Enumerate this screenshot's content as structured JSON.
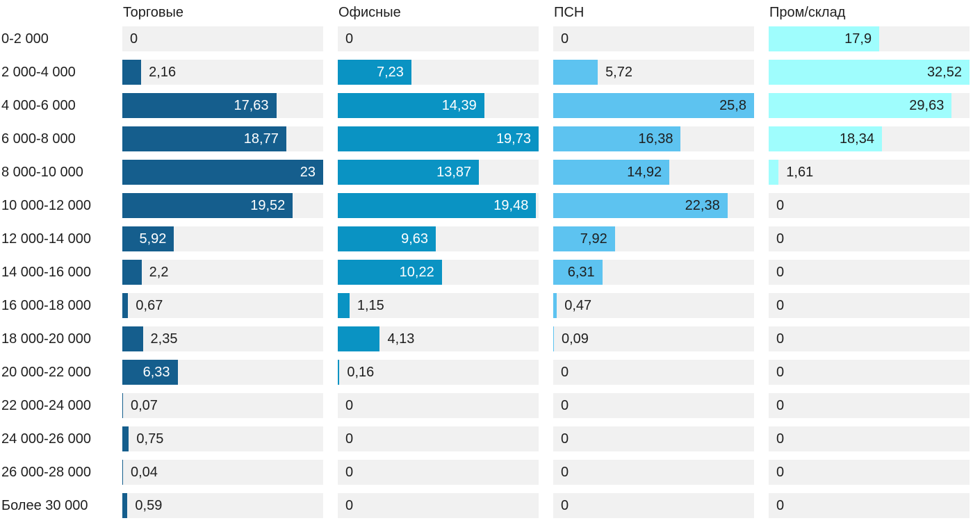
{
  "chart_data": {
    "type": "bar",
    "orientation": "horizontal",
    "title": "",
    "xlabel": "",
    "ylabel": "",
    "grid": false,
    "legend_position": "top-column-headers",
    "scale_note": "each column is scaled independently so the column maximum fills the full track width",
    "track_color": "#F1F1F1",
    "text_color": "#1E1E1E",
    "categories": [
      "0-2 000",
      "2 000-4 000",
      "4 000-6 000",
      "6 000-8 000",
      "8 000-10 000",
      "10 000-12 000",
      "12 000-14 000",
      "14 000-16 000",
      "16 000-18 000",
      "18 000-20 000",
      "20 000-22 000",
      "22 000-24 000",
      "24 000-26 000",
      "26 000-28 000",
      "Более 30 000"
    ],
    "series": [
      {
        "name": "Торговые",
        "color": "#155E8D",
        "label_color_inside": "#FFFFFF",
        "values": [
          0,
          2.16,
          17.63,
          18.77,
          23,
          19.52,
          5.92,
          2.2,
          0.67,
          2.35,
          6.33,
          0.07,
          0.75,
          0.04,
          0.59
        ],
        "labels": [
          "0",
          "2,16",
          "17,63",
          "18,77",
          "23",
          "19,52",
          "5,92",
          "2,2",
          "0,67",
          "2,35",
          "6,33",
          "0,07",
          "0,75",
          "0,04",
          "0,59"
        ]
      },
      {
        "name": "Офисные",
        "color": "#0A93C3",
        "label_color_inside": "#FFFFFF",
        "values": [
          0,
          7.23,
          14.39,
          19.73,
          13.87,
          19.48,
          9.63,
          10.22,
          1.15,
          4.13,
          0.16,
          0,
          0,
          0,
          0
        ],
        "labels": [
          "0",
          "7,23",
          "14,39",
          "19,73",
          "13,87",
          "19,48",
          "9,63",
          "10,22",
          "1,15",
          "4,13",
          "0,16",
          "0",
          "0",
          "0",
          "0"
        ]
      },
      {
        "name": "ПСН",
        "color": "#5DC3F0",
        "label_color_inside": "#1E1E1E",
        "values": [
          0,
          5.72,
          25.8,
          16.38,
          14.92,
          22.38,
          7.92,
          6.31,
          0.47,
          0.09,
          0,
          0,
          0,
          0,
          0
        ],
        "labels": [
          "0",
          "5,72",
          "25,8",
          "16,38",
          "14,92",
          "22,38",
          "7,92",
          "6,31",
          "0,47",
          "0,09",
          "0",
          "0",
          "0",
          "0",
          "0"
        ]
      },
      {
        "name": "Пром/склад",
        "color": "#9FFDFD",
        "label_color_inside": "#1E1E1E",
        "values": [
          17.9,
          32.52,
          29.63,
          18.34,
          1.61,
          0,
          0,
          0,
          0,
          0,
          0,
          0,
          0,
          0,
          0
        ],
        "labels": [
          "17,9",
          "32,52",
          "29,63",
          "18,34",
          "1,61",
          "0",
          "0",
          "0",
          "0",
          "0",
          "0",
          "0",
          "0",
          "0",
          "0"
        ]
      }
    ],
    "decimal_separator": ","
  }
}
